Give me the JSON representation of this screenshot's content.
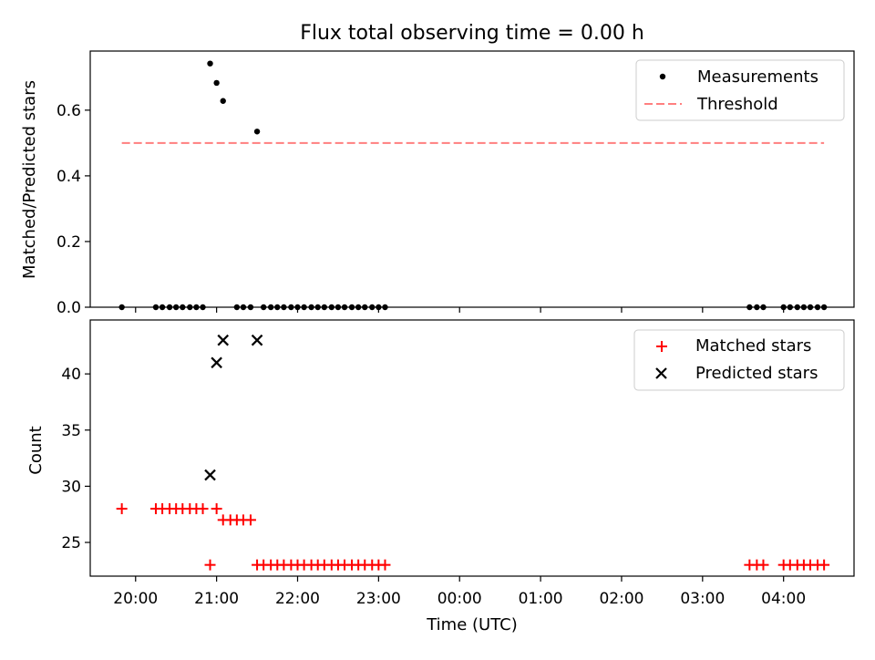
{
  "figure": {
    "title": "Flux total observing time = 0.00 h",
    "xlabel": "Time (UTC)"
  },
  "chart_data": [
    {
      "type": "scatter",
      "ylabel": "Matched/Predicted stars",
      "ylim": [
        0,
        0.78
      ],
      "yticks": [
        0.0,
        0.2,
        0.4,
        0.6
      ],
      "ytick_labels": [
        "0.0",
        "0.2",
        "0.4",
        "0.6"
      ],
      "xlim_hours": [
        19.44,
        28.87
      ],
      "legend_position": "top-right",
      "series": [
        {
          "name": "Measurements",
          "marker": "dot",
          "color": "#000000",
          "x": [
            19.83,
            20.25,
            20.33,
            20.42,
            20.5,
            20.58,
            20.67,
            20.75,
            20.83,
            20.92,
            21.0,
            21.08,
            21.25,
            21.33,
            21.42,
            21.5,
            21.58,
            21.67,
            21.75,
            21.83,
            21.92,
            22.0,
            22.08,
            22.17,
            22.25,
            22.33,
            22.42,
            22.5,
            22.58,
            22.67,
            22.75,
            22.83,
            22.92,
            23.0,
            23.08,
            27.58,
            27.67,
            27.75,
            28.0,
            28.08,
            28.17,
            28.25,
            28.33,
            28.42,
            28.5
          ],
          "y": [
            0,
            0,
            0,
            0,
            0,
            0,
            0,
            0,
            0,
            0.742,
            0.683,
            0.628,
            0,
            0,
            0,
            0.535,
            0,
            0,
            0,
            0,
            0,
            0,
            0,
            0,
            0,
            0,
            0,
            0,
            0,
            0,
            0,
            0,
            0,
            0,
            0,
            0,
            0,
            0,
            0,
            0,
            0,
            0,
            0,
            0,
            0
          ]
        },
        {
          "name": "Threshold",
          "style": "dashed",
          "color": "#ff7f7f",
          "x": [
            19.83,
            28.5
          ],
          "y": [
            0.5,
            0.5
          ]
        }
      ]
    },
    {
      "type": "scatter",
      "ylabel": "Count",
      "ylim": [
        22,
        44.8
      ],
      "yticks": [
        25,
        30,
        35,
        40
      ],
      "ytick_labels": [
        "25",
        "30",
        "35",
        "40"
      ],
      "xlim_hours": [
        19.44,
        28.87
      ],
      "xticks_hours": [
        20,
        21,
        22,
        23,
        24,
        25,
        26,
        27,
        28
      ],
      "xtick_labels": [
        "20:00",
        "21:00",
        "22:00",
        "23:00",
        "00:00",
        "01:00",
        "02:00",
        "03:00",
        "04:00"
      ],
      "legend_position": "top-right",
      "series": [
        {
          "name": "Matched stars",
          "marker": "plus",
          "color": "#ff0000",
          "x": [
            19.83,
            20.25,
            20.33,
            20.42,
            20.5,
            20.58,
            20.67,
            20.75,
            20.83,
            20.92,
            21.0,
            21.08,
            21.17,
            21.25,
            21.33,
            21.42,
            21.5,
            21.58,
            21.67,
            21.75,
            21.83,
            21.92,
            22.0,
            22.08,
            22.17,
            22.25,
            22.33,
            22.42,
            22.5,
            22.58,
            22.67,
            22.75,
            22.83,
            22.92,
            23.0,
            23.08,
            27.58,
            27.67,
            27.75,
            28.0,
            28.08,
            28.17,
            28.25,
            28.33,
            28.42,
            28.5
          ],
          "y": [
            28,
            28,
            28,
            28,
            28,
            28,
            28,
            28,
            28,
            23,
            28,
            27,
            27,
            27,
            27,
            27,
            23,
            23,
            23,
            23,
            23,
            23,
            23,
            23,
            23,
            23,
            23,
            23,
            23,
            23,
            23,
            23,
            23,
            23,
            23,
            23,
            23,
            23,
            23,
            23,
            23,
            23,
            23,
            23,
            23,
            23
          ]
        },
        {
          "name": "Predicted stars",
          "marker": "x",
          "color": "#000000",
          "x": [
            20.92,
            21.0,
            21.08,
            21.5
          ],
          "y": [
            31,
            41,
            43,
            43
          ]
        }
      ]
    }
  ]
}
